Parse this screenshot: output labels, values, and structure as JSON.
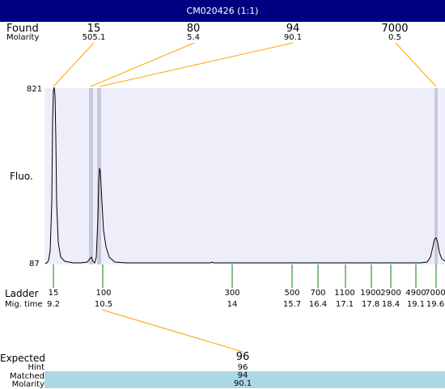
{
  "window": {
    "title": "CM020426 (1:1)"
  },
  "labels": {
    "found": "Found",
    "molarity": "Molarity",
    "fluo": "Fluo.",
    "y_max": "821",
    "y_min": "87",
    "ladder": "Ladder",
    "mig_time": "Mig. time",
    "expected": "Expected",
    "hint": "Hint",
    "matched": "Matched",
    "molarity_bottom": "Molarity"
  },
  "found_peaks": [
    {
      "size": "15",
      "molarity": "505.1"
    },
    {
      "size": "80",
      "molarity": "5.4"
    },
    {
      "size": "94",
      "molarity": "90.1"
    },
    {
      "size": "7000",
      "molarity": "0.5"
    }
  ],
  "ladder": [
    {
      "size": "15",
      "time": "9.2"
    },
    {
      "size": "100",
      "time": "10.5"
    },
    {
      "size": "300",
      "time": "14"
    },
    {
      "size": "500",
      "time": "15.7"
    },
    {
      "size": "700",
      "time": "16.4"
    },
    {
      "size": "1100",
      "time": "17.1"
    },
    {
      "size": "1900",
      "time": "17.8"
    },
    {
      "size": "2900",
      "time": "18.4"
    },
    {
      "size": "4900",
      "time": "19.1"
    },
    {
      "size": "7000",
      "time": "19.6"
    }
  ],
  "expected": {
    "value": "96",
    "hint": "96",
    "matched": "94",
    "molarity": "90.1"
  },
  "colors": {
    "title_bg": "#000080",
    "plot_bg": "#eeeefa",
    "marker_band": "#c8c8dc",
    "connector": "#ffa500",
    "ladder_tick": "#008000",
    "result_bar": "#add8e6"
  }
}
